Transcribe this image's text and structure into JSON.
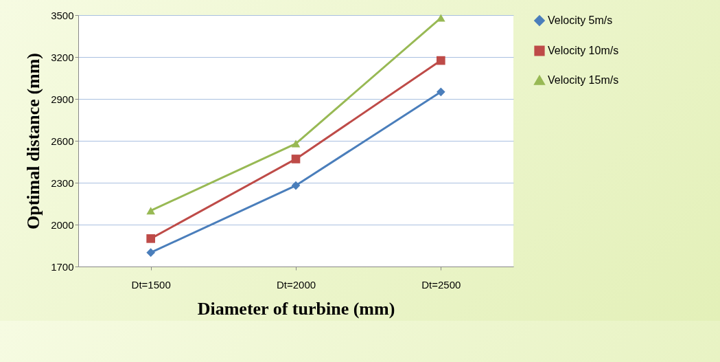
{
  "chart_data": {
    "type": "line",
    "xlabel": "Diameter of turbine (mm)",
    "ylabel": "Optimal distance (mm)",
    "categories": [
      "Dt=1500",
      "Dt=2000",
      "Dt=2500"
    ],
    "series": [
      {
        "name": "Velocity 5m/s",
        "color": "#4a7ebb",
        "marker": "diamond",
        "values": [
          1800,
          2280,
          2950
        ]
      },
      {
        "name": "Velocity 10m/s",
        "color": "#be4b48",
        "marker": "square",
        "values": [
          1900,
          2470,
          3175
        ]
      },
      {
        "name": "Velocity 15m/s",
        "color": "#98b954",
        "marker": "triangle",
        "values": [
          2100,
          2580,
          3480
        ]
      }
    ],
    "ylim": [
      1700,
      3500
    ],
    "yticks": [
      1700,
      2000,
      2300,
      2600,
      2900,
      3200,
      3500
    ],
    "grid": "y",
    "legend": "right"
  }
}
